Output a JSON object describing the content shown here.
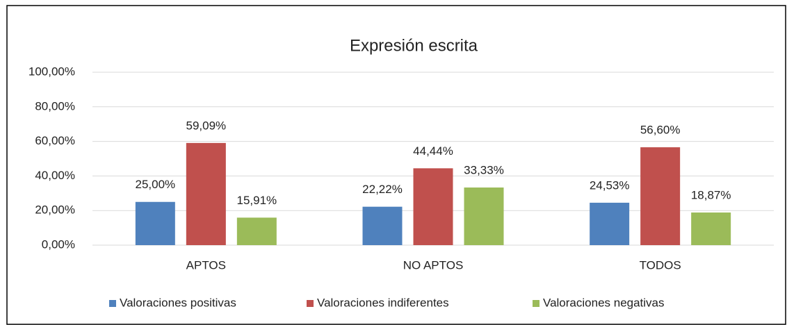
{
  "chart_data": {
    "type": "bar",
    "title": "Expresión escrita",
    "categories": [
      "APTOS",
      "NO APTOS",
      "TODOS"
    ],
    "series": [
      {
        "name": "Valoraciones positivas",
        "color": "#4f81bd",
        "values": [
          25.0,
          22.22,
          24.53
        ],
        "value_labels": [
          "25,00%",
          "22,22%",
          "24,53%"
        ]
      },
      {
        "name": "Valoraciones indiferentes",
        "color": "#c0504d",
        "values": [
          59.09,
          44.44,
          56.6
        ],
        "value_labels": [
          "59,09%",
          "44,44%",
          "56,60%"
        ]
      },
      {
        "name": "Valoraciones negativas",
        "color": "#9bbb59",
        "values": [
          15.91,
          33.33,
          18.87
        ],
        "value_labels": [
          "15,91%",
          "33,33%",
          "18,87%"
        ]
      }
    ],
    "ylim": [
      0,
      100
    ],
    "yticks": [
      {
        "value": 0,
        "label": "0,00%"
      },
      {
        "value": 20,
        "label": "20,00%"
      },
      {
        "value": 40,
        "label": "40,00%"
      },
      {
        "value": 60,
        "label": "60,00%"
      },
      {
        "value": 80,
        "label": "80,00%"
      },
      {
        "value": 100,
        "label": "100,00%"
      }
    ],
    "grid": true,
    "legend": "bottom"
  }
}
